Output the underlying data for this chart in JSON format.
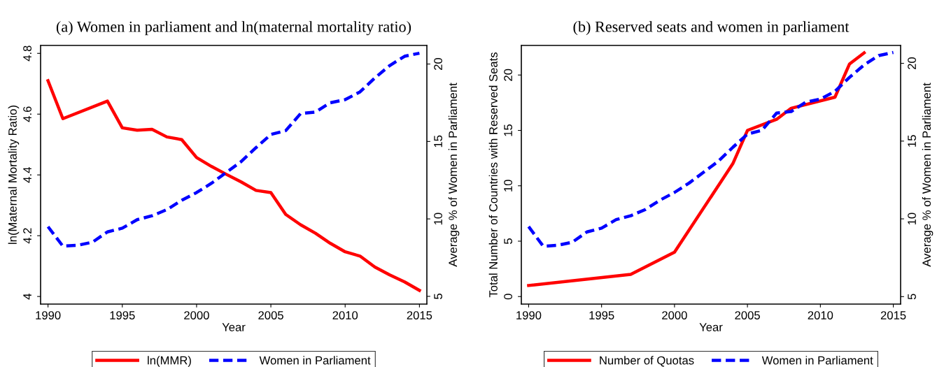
{
  "chart_data": [
    {
      "type": "line",
      "title": "(a) Women in parliament and ln(maternal mortality ratio)",
      "xlabel": "Year",
      "ylabel": "ln(Maternal Mortality Ratio)",
      "y2label": "Average % of Women in Parliament",
      "xlim": [
        1989.5,
        2015.5
      ],
      "xticks": [
        1990,
        1995,
        2000,
        2005,
        2010,
        2015
      ],
      "ylim": [
        3.975,
        4.826
      ],
      "yticks": [
        4,
        4.2,
        4.4,
        4.6,
        4.8
      ],
      "y2lim": [
        4.5,
        21.2
      ],
      "y2ticks": [
        5,
        10,
        15,
        20
      ],
      "grid": false,
      "legend": "bottom",
      "series": [
        {
          "name": "ln(MMR)",
          "color": "#ff0000",
          "line_style": "solid",
          "x": [
            1990,
            1991,
            1994,
            1995,
            1996,
            1997,
            1998,
            1999,
            2000,
            2001,
            2002,
            2003,
            2004,
            2005,
            2006,
            2007,
            2008,
            2009,
            2010,
            2011,
            2012,
            2013,
            2014,
            2015
          ],
          "values": [
            4.71,
            4.585,
            4.643,
            4.555,
            4.547,
            4.55,
            4.525,
            4.516,
            4.457,
            4.428,
            4.402,
            4.377,
            4.349,
            4.342,
            4.27,
            4.236,
            4.208,
            4.175,
            4.147,
            4.133,
            4.097,
            4.071,
            4.048,
            4.02
          ]
        },
        {
          "name": "Women in Parliament",
          "color": "#0000ff",
          "line_style": "dashed",
          "axis": "y2",
          "x": [
            1990,
            1991,
            1992,
            1993,
            1994,
            1995,
            1996,
            1997,
            1998,
            1999,
            2000,
            2001,
            2002,
            2003,
            2004,
            2005,
            2006,
            2007,
            2008,
            2009,
            2010,
            2011,
            2012,
            2013,
            2014,
            2015
          ],
          "values": [
            9.5,
            8.24,
            8.3,
            8.5,
            9.16,
            9.4,
            9.95,
            10.2,
            10.6,
            11.2,
            11.7,
            12.3,
            13.0,
            13.7,
            14.6,
            15.45,
            15.7,
            16.8,
            16.9,
            17.5,
            17.7,
            18.2,
            19.1,
            19.9,
            20.5,
            20.7
          ]
        }
      ]
    },
    {
      "type": "line",
      "title": "(b) Reserved seats and women in parliament",
      "xlabel": "Year",
      "ylabel": "Total Number of Countries with Reserved Seats",
      "y2label": "Average % of Women in Parliament",
      "xlim": [
        1989.5,
        2015.5
      ],
      "xticks": [
        1990,
        1995,
        2000,
        2005,
        2010,
        2015
      ],
      "ylim": [
        -0.68,
        22.67
      ],
      "yticks": [
        0,
        5,
        10,
        15,
        20
      ],
      "y2lim": [
        4.52,
        21.15
      ],
      "y2ticks": [
        5,
        10,
        15,
        20
      ],
      "grid": false,
      "legend": "bottom",
      "series": [
        {
          "name": "Number of Quotas",
          "color": "#ff0000",
          "line_style": "solid",
          "x": [
            1990,
            1997,
            2000,
            2004,
            2005,
            2007,
            2008,
            2011,
            2012,
            2013
          ],
          "values": [
            1,
            2,
            4,
            12,
            15,
            16,
            17,
            18,
            21,
            22
          ]
        },
        {
          "name": "Women in Parliament",
          "color": "#0000ff",
          "line_style": "dashed",
          "axis": "y2",
          "x": [
            1990,
            1991,
            1992,
            1993,
            1994,
            1995,
            1996,
            1997,
            1998,
            1999,
            2000,
            2001,
            2002,
            2003,
            2004,
            2005,
            2006,
            2007,
            2008,
            2009,
            2010,
            2011,
            2012,
            2013,
            2014,
            2015
          ],
          "values": [
            9.5,
            8.24,
            8.3,
            8.5,
            9.16,
            9.4,
            9.95,
            10.2,
            10.6,
            11.2,
            11.7,
            12.3,
            13.0,
            13.7,
            14.6,
            15.45,
            15.7,
            16.8,
            16.9,
            17.5,
            17.7,
            18.2,
            19.1,
            19.9,
            20.5,
            20.7
          ]
        }
      ]
    }
  ]
}
